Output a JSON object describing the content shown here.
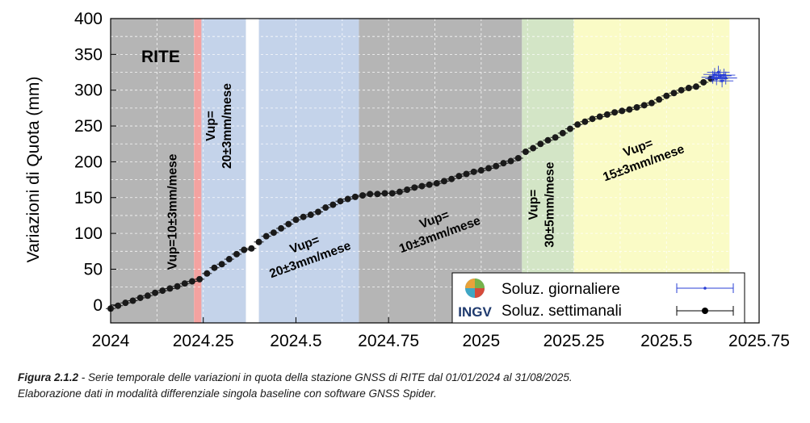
{
  "chart_data": {
    "type": "scatter",
    "station_label": "RITE",
    "ylabel": "Variazioni di Quota (mm)",
    "xlabel": "",
    "xlim": [
      2024,
      2025.75
    ],
    "ylim": [
      -25,
      400
    ],
    "x_ticks": [
      "2024",
      "2024.25",
      "2024.5",
      "2024.75",
      "2025",
      "2025.25",
      "2025.5",
      "2025.75"
    ],
    "y_ticks": [
      "0",
      "50",
      "100",
      "150",
      "200",
      "250",
      "300",
      "350",
      "400"
    ],
    "grid": true,
    "legend_placement": "bottom-right",
    "periods": [
      {
        "start": 2024.0,
        "end": 2024.225,
        "color": "#b5b5b5",
        "label": "Vup=10±3mm/mese",
        "label_orientation": "vertical",
        "label_x": 2024.165,
        "label_y": 130
      },
      {
        "start": 2024.225,
        "end": 2024.245,
        "color": "#f4a2a0",
        "label": "",
        "label_orientation": "none"
      },
      {
        "start": 2024.245,
        "end": 2024.365,
        "color": "#c4d3ea",
        "label": "Vup=\n20±3mm/mese",
        "label_orientation": "vertical",
        "label_x": 2024.29,
        "label_y": 250
      },
      {
        "start": 2024.365,
        "end": 2024.4,
        "color": "#ffffff",
        "label": "",
        "label_orientation": "none"
      },
      {
        "start": 2024.4,
        "end": 2024.67,
        "color": "#c4d3ea",
        "label": "Vup=\n20±3mm/mese",
        "label_orientation": "rotated",
        "label_x": 2024.53,
        "label_y": 75
      },
      {
        "start": 2024.67,
        "end": 2025.11,
        "color": "#b5b5b5",
        "label": "Vup=\n10±3mm/mese",
        "label_orientation": "rotated",
        "label_x": 2024.88,
        "label_y": 110
      },
      {
        "start": 2025.11,
        "end": 2025.25,
        "color": "#d3e5c6",
        "label": "Vup=\n30±5mm/mese",
        "label_orientation": "vertical",
        "label_x": 2025.16,
        "label_y": 140
      },
      {
        "start": 2025.25,
        "end": 2025.67,
        "color": "#fafbc6",
        "label": "Vup=\n15±3mm/mese",
        "label_orientation": "rotated",
        "label_x": 2025.43,
        "label_y": 210
      }
    ],
    "series": [
      {
        "name": "Soluz. settimanali",
        "color": "#1a1a1a",
        "marker": "circle",
        "x": [
          2024.0,
          2024.02,
          2024.04,
          2024.06,
          2024.08,
          2024.1,
          2024.12,
          2024.14,
          2024.16,
          2024.18,
          2024.2,
          2024.22,
          2024.24,
          2024.26,
          2024.28,
          2024.3,
          2024.32,
          2024.34,
          2024.36,
          2024.38,
          2024.4,
          2024.42,
          2024.44,
          2024.46,
          2024.48,
          2024.5,
          2024.52,
          2024.54,
          2024.56,
          2024.58,
          2024.6,
          2024.62,
          2024.64,
          2024.66,
          2024.68,
          2024.7,
          2024.72,
          2024.74,
          2024.76,
          2024.78,
          2024.8,
          2024.82,
          2024.84,
          2024.86,
          2024.88,
          2024.9,
          2024.92,
          2024.94,
          2024.96,
          2024.98,
          2025.0,
          2025.02,
          2025.04,
          2025.06,
          2025.08,
          2025.1,
          2025.12,
          2025.14,
          2025.16,
          2025.18,
          2025.2,
          2025.22,
          2025.24,
          2025.26,
          2025.28,
          2025.3,
          2025.32,
          2025.34,
          2025.36,
          2025.38,
          2025.4,
          2025.42,
          2025.44,
          2025.46,
          2025.48,
          2025.5,
          2025.52,
          2025.54,
          2025.56,
          2025.58,
          2025.6,
          2025.62
        ],
        "y": [
          -5,
          -1,
          3,
          6,
          10,
          13,
          17,
          20,
          23,
          26,
          30,
          33,
          36,
          44,
          52,
          57,
          64,
          71,
          77,
          79,
          88,
          96,
          101,
          107,
          113,
          119,
          123,
          126,
          130,
          136,
          140,
          145,
          148,
          151,
          153,
          155,
          155,
          156,
          156,
          158,
          161,
          164,
          166,
          168,
          170,
          173,
          176,
          180,
          183,
          186,
          188,
          191,
          194,
          198,
          201,
          205,
          214,
          219,
          225,
          230,
          234,
          240,
          246,
          252,
          256,
          260,
          263,
          266,
          269,
          271,
          273,
          276,
          279,
          282,
          287,
          292,
          296,
          300,
          303,
          305,
          311,
          316
        ]
      },
      {
        "name": "Soluz. giornaliere",
        "color": "#2a3fd6",
        "marker": "dot",
        "x": [
          2025.625,
          2025.63,
          2025.635,
          2025.64,
          2025.645,
          2025.65,
          2025.655,
          2025.66
        ],
        "y": [
          318,
          322,
          316,
          325,
          320,
          313,
          321,
          317
        ]
      }
    ],
    "logo_text": "INGV"
  },
  "caption": {
    "figure_label": "Figura 2.1.2",
    "line1": " - Serie temporale delle variazioni in quota della stazione GNSS di RITE dal 01/01/2024 al 31/08/2025.",
    "line2": "Elaborazione dati in modalità differenziale singola baseline con software GNSS Spider."
  }
}
